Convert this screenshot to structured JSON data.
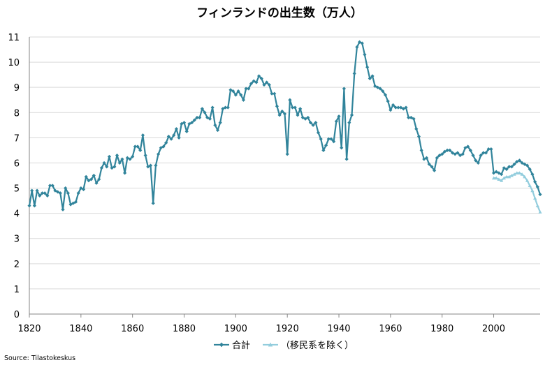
{
  "chart_data": {
    "type": "line",
    "title": "フィンランドの出生数（万人）",
    "xlabel": "",
    "ylabel": "",
    "xlim": [
      1820,
      2018
    ],
    "ylim": [
      0,
      11
    ],
    "x_ticks": [
      1820,
      1840,
      1860,
      1880,
      1900,
      1920,
      1940,
      1960,
      1980,
      2000
    ],
    "y_ticks": [
      0,
      1,
      2,
      3,
      4,
      5,
      6,
      7,
      8,
      9,
      10,
      11
    ],
    "grid": "horizontal",
    "legend_position": "bottom",
    "series": [
      {
        "name": "合計",
        "color": "#31849b",
        "marker": "diamond",
        "points": [
          [
            1820,
            4.3
          ],
          [
            1821,
            4.9
          ],
          [
            1822,
            4.3
          ],
          [
            1823,
            4.9
          ],
          [
            1824,
            4.7
          ],
          [
            1825,
            4.8
          ],
          [
            1826,
            4.8
          ],
          [
            1827,
            4.7
          ],
          [
            1828,
            5.1
          ],
          [
            1829,
            5.1
          ],
          [
            1830,
            4.9
          ],
          [
            1831,
            4.85
          ],
          [
            1832,
            4.8
          ],
          [
            1833,
            4.15
          ],
          [
            1834,
            5.0
          ],
          [
            1835,
            4.8
          ],
          [
            1836,
            4.35
          ],
          [
            1837,
            4.4
          ],
          [
            1838,
            4.45
          ],
          [
            1839,
            4.8
          ],
          [
            1840,
            5.0
          ],
          [
            1841,
            4.95
          ],
          [
            1842,
            5.45
          ],
          [
            1843,
            5.3
          ],
          [
            1844,
            5.35
          ],
          [
            1845,
            5.5
          ],
          [
            1846,
            5.2
          ],
          [
            1847,
            5.35
          ],
          [
            1848,
            5.8
          ],
          [
            1849,
            6.0
          ],
          [
            1850,
            5.85
          ],
          [
            1851,
            6.25
          ],
          [
            1852,
            5.8
          ],
          [
            1853,
            5.85
          ],
          [
            1854,
            6.3
          ],
          [
            1855,
            6.0
          ],
          [
            1856,
            6.15
          ],
          [
            1857,
            5.6
          ],
          [
            1858,
            6.2
          ],
          [
            1859,
            6.15
          ],
          [
            1860,
            6.25
          ],
          [
            1861,
            6.65
          ],
          [
            1862,
            6.65
          ],
          [
            1863,
            6.5
          ],
          [
            1864,
            7.1
          ],
          [
            1865,
            6.3
          ],
          [
            1866,
            5.85
          ],
          [
            1867,
            5.9
          ],
          [
            1868,
            4.4
          ],
          [
            1869,
            5.9
          ],
          [
            1870,
            6.35
          ],
          [
            1871,
            6.6
          ],
          [
            1872,
            6.65
          ],
          [
            1873,
            6.8
          ],
          [
            1874,
            7.05
          ],
          [
            1875,
            6.95
          ],
          [
            1876,
            7.1
          ],
          [
            1877,
            7.35
          ],
          [
            1878,
            7.0
          ],
          [
            1879,
            7.55
          ],
          [
            1880,
            7.6
          ],
          [
            1881,
            7.25
          ],
          [
            1882,
            7.55
          ],
          [
            1883,
            7.6
          ],
          [
            1884,
            7.7
          ],
          [
            1885,
            7.8
          ],
          [
            1886,
            7.8
          ],
          [
            1887,
            8.15
          ],
          [
            1888,
            8.0
          ],
          [
            1889,
            7.8
          ],
          [
            1890,
            7.75
          ],
          [
            1891,
            8.2
          ],
          [
            1892,
            7.5
          ],
          [
            1893,
            7.3
          ],
          [
            1894,
            7.6
          ],
          [
            1895,
            8.15
          ],
          [
            1896,
            8.2
          ],
          [
            1897,
            8.2
          ],
          [
            1898,
            8.9
          ],
          [
            1899,
            8.85
          ],
          [
            1900,
            8.7
          ],
          [
            1901,
            8.85
          ],
          [
            1902,
            8.7
          ],
          [
            1903,
            8.5
          ],
          [
            1904,
            8.95
          ],
          [
            1905,
            8.95
          ],
          [
            1906,
            9.15
          ],
          [
            1907,
            9.25
          ],
          [
            1908,
            9.2
          ],
          [
            1909,
            9.45
          ],
          [
            1910,
            9.35
          ],
          [
            1911,
            9.1
          ],
          [
            1912,
            9.2
          ],
          [
            1913,
            9.1
          ],
          [
            1914,
            8.75
          ],
          [
            1915,
            8.75
          ],
          [
            1916,
            8.25
          ],
          [
            1917,
            7.9
          ],
          [
            1918,
            8.05
          ],
          [
            1919,
            7.95
          ],
          [
            1920,
            6.35
          ],
          [
            1921,
            8.5
          ],
          [
            1922,
            8.2
          ],
          [
            1923,
            8.2
          ],
          [
            1924,
            7.9
          ],
          [
            1925,
            8.15
          ],
          [
            1926,
            7.8
          ],
          [
            1927,
            7.75
          ],
          [
            1928,
            7.8
          ],
          [
            1929,
            7.6
          ],
          [
            1930,
            7.5
          ],
          [
            1931,
            7.6
          ],
          [
            1932,
            7.2
          ],
          [
            1933,
            6.95
          ],
          [
            1934,
            6.5
          ],
          [
            1935,
            6.7
          ],
          [
            1936,
            6.95
          ],
          [
            1937,
            6.95
          ],
          [
            1938,
            6.85
          ],
          [
            1939,
            7.65
          ],
          [
            1940,
            7.85
          ],
          [
            1941,
            6.6
          ],
          [
            1942,
            8.95
          ],
          [
            1943,
            6.15
          ],
          [
            1944,
            7.6
          ],
          [
            1945,
            7.9
          ],
          [
            1946,
            9.55
          ],
          [
            1947,
            10.6
          ],
          [
            1948,
            10.8
          ],
          [
            1949,
            10.75
          ],
          [
            1950,
            10.3
          ],
          [
            1951,
            9.8
          ],
          [
            1952,
            9.35
          ],
          [
            1953,
            9.45
          ],
          [
            1954,
            9.05
          ],
          [
            1955,
            9.0
          ],
          [
            1956,
            8.95
          ],
          [
            1957,
            8.85
          ],
          [
            1958,
            8.7
          ],
          [
            1959,
            8.45
          ],
          [
            1960,
            8.1
          ],
          [
            1961,
            8.3
          ],
          [
            1962,
            8.2
          ],
          [
            1963,
            8.2
          ],
          [
            1964,
            8.2
          ],
          [
            1965,
            8.15
          ],
          [
            1966,
            8.2
          ],
          [
            1967,
            7.8
          ],
          [
            1968,
            7.8
          ],
          [
            1969,
            7.75
          ],
          [
            1970,
            7.35
          ],
          [
            1971,
            7.05
          ],
          [
            1972,
            6.5
          ],
          [
            1973,
            6.15
          ],
          [
            1974,
            6.2
          ],
          [
            1975,
            5.95
          ],
          [
            1976,
            5.85
          ],
          [
            1977,
            5.7
          ],
          [
            1978,
            6.2
          ],
          [
            1979,
            6.3
          ],
          [
            1980,
            6.35
          ],
          [
            1981,
            6.45
          ],
          [
            1982,
            6.5
          ],
          [
            1983,
            6.5
          ],
          [
            1984,
            6.4
          ],
          [
            1985,
            6.35
          ],
          [
            1986,
            6.4
          ],
          [
            1987,
            6.3
          ],
          [
            1988,
            6.35
          ],
          [
            1989,
            6.6
          ],
          [
            1990,
            6.65
          ],
          [
            1991,
            6.5
          ],
          [
            1992,
            6.3
          ],
          [
            1993,
            6.1
          ],
          [
            1994,
            6.0
          ],
          [
            1995,
            6.3
          ],
          [
            1996,
            6.4
          ],
          [
            1997,
            6.4
          ],
          [
            1998,
            6.55
          ],
          [
            1999,
            6.55
          ],
          [
            2000,
            5.6
          ],
          [
            2001,
            5.65
          ],
          [
            2002,
            5.6
          ],
          [
            2003,
            5.55
          ],
          [
            2004,
            5.8
          ],
          [
            2005,
            5.75
          ],
          [
            2006,
            5.85
          ],
          [
            2007,
            5.85
          ],
          [
            2008,
            5.95
          ],
          [
            2009,
            6.05
          ],
          [
            2010,
            6.1
          ],
          [
            2011,
            6.0
          ],
          [
            2012,
            5.95
          ],
          [
            2013,
            5.9
          ],
          [
            2014,
            5.75
          ],
          [
            2015,
            5.55
          ],
          [
            2016,
            5.25
          ],
          [
            2017,
            5.05
          ],
          [
            2018,
            4.75
          ]
        ]
      },
      {
        "name": "（移民系を除く）",
        "color": "#93cddd",
        "marker": "triangle",
        "points": [
          [
            2000,
            5.4
          ],
          [
            2001,
            5.4
          ],
          [
            2002,
            5.35
          ],
          [
            2003,
            5.3
          ],
          [
            2004,
            5.4
          ],
          [
            2005,
            5.45
          ],
          [
            2006,
            5.45
          ],
          [
            2007,
            5.5
          ],
          [
            2008,
            5.55
          ],
          [
            2009,
            5.6
          ],
          [
            2010,
            5.6
          ],
          [
            2011,
            5.55
          ],
          [
            2012,
            5.45
          ],
          [
            2013,
            5.3
          ],
          [
            2014,
            5.1
          ],
          [
            2015,
            4.9
          ],
          [
            2016,
            4.6
          ],
          [
            2017,
            4.3
          ],
          [
            2018,
            4.05
          ]
        ]
      }
    ]
  },
  "source_note": "Source: Tilastokeskus"
}
